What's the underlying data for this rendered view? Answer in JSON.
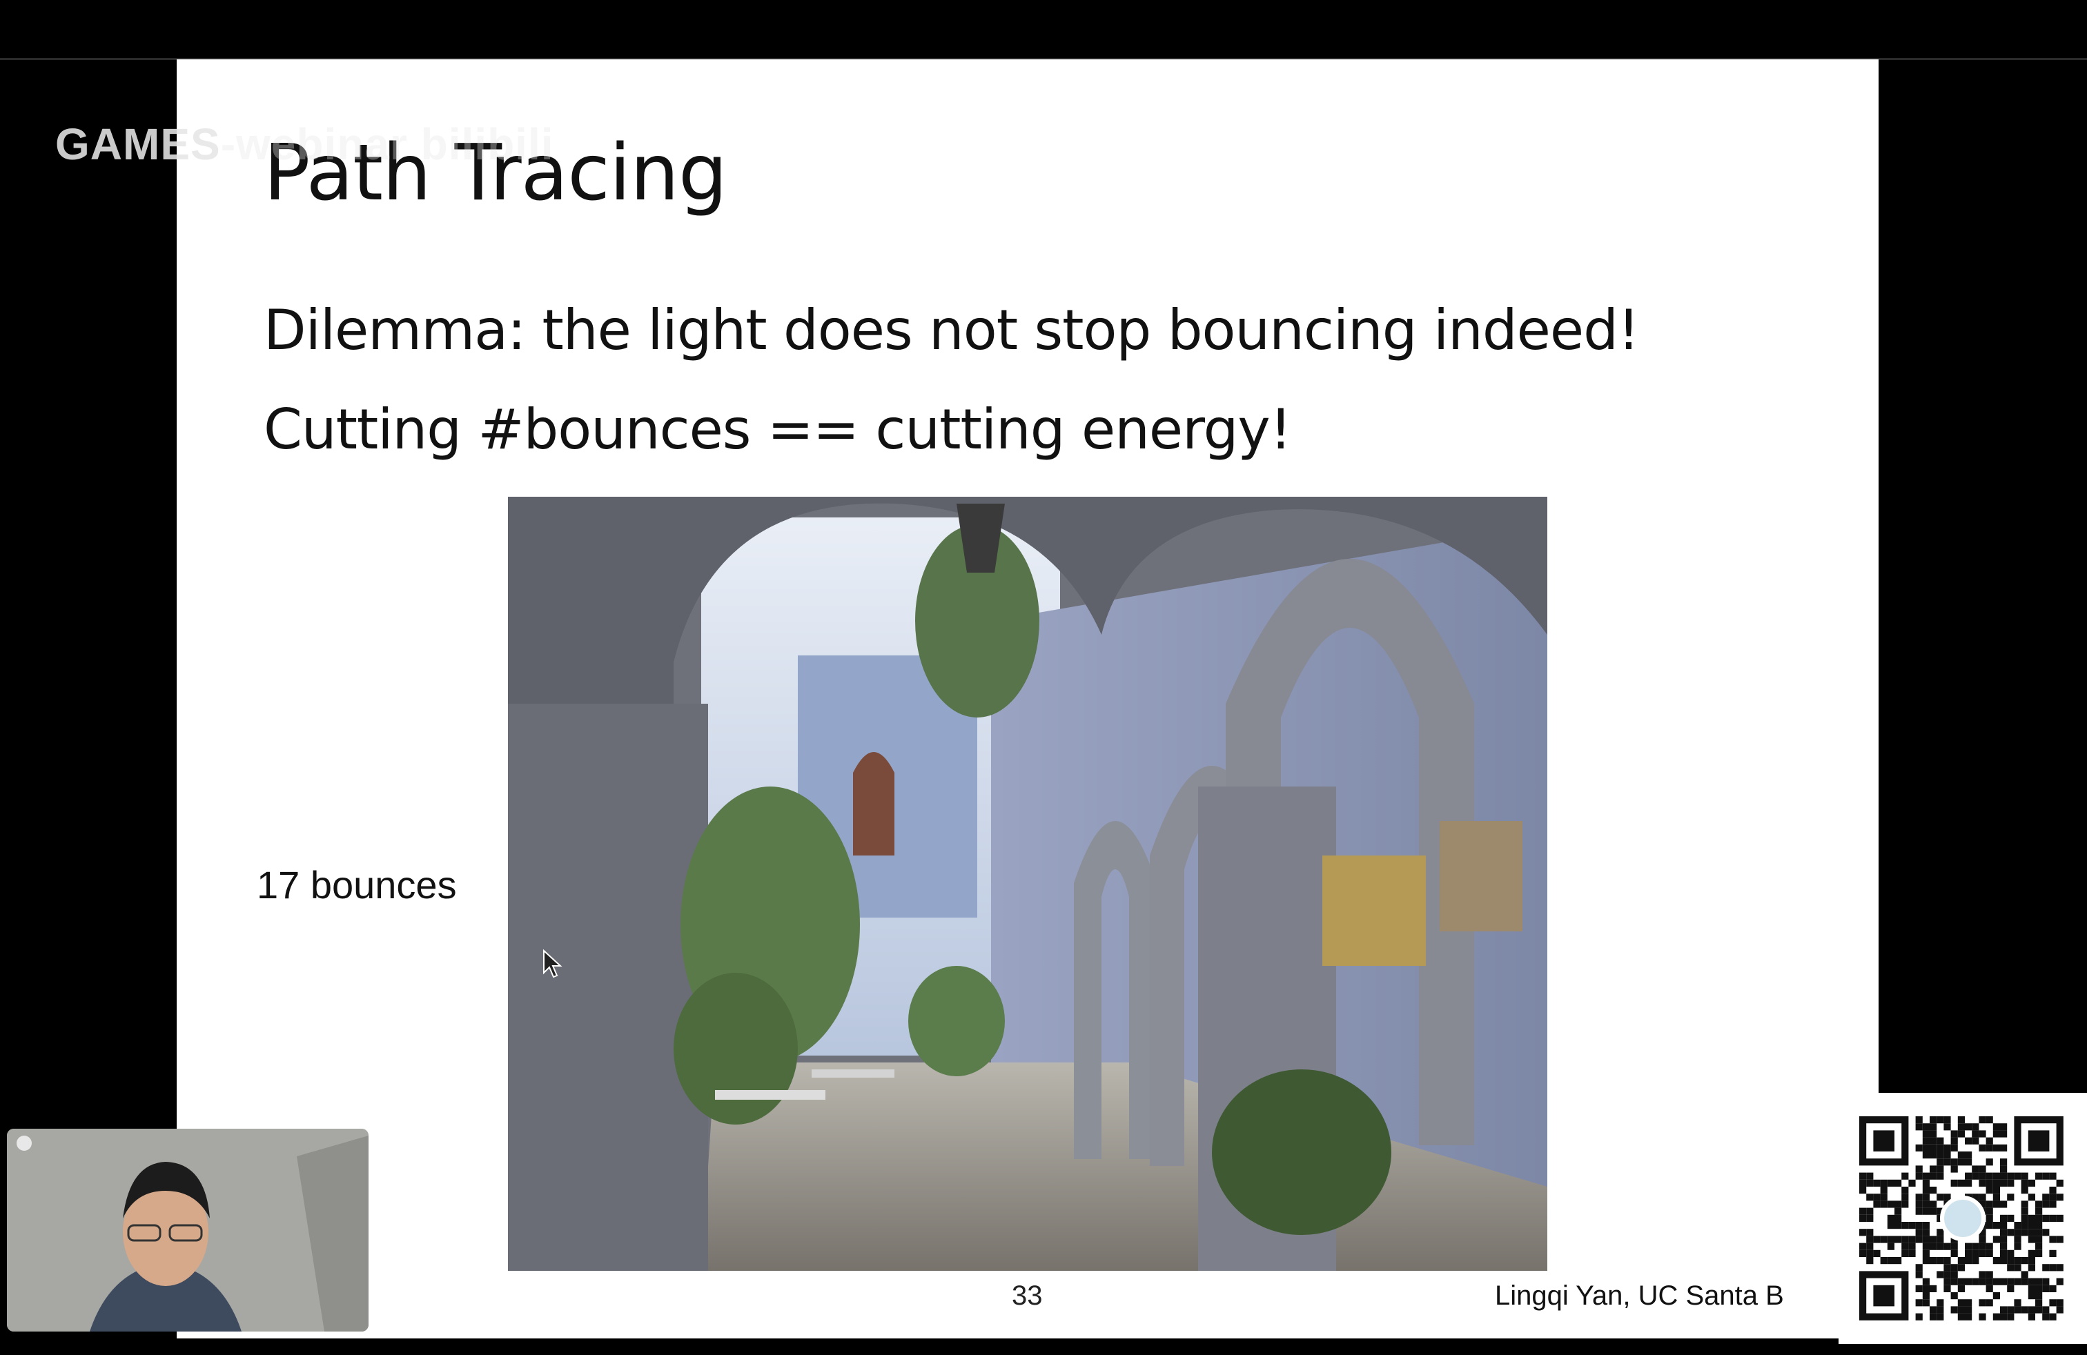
{
  "watermark": {
    "text": "GAMES",
    "faint": "-webinar bilibili"
  },
  "slide": {
    "title": "Path Tracing",
    "bullets": [
      "Dilemma: the light does not stop bouncing indeed!",
      "Cutting #bounces == cutting energy!"
    ],
    "image_label": "17 bounces",
    "page_number": "33",
    "credit": "Lingqi Yan, UC Santa Barbara"
  },
  "icons": {
    "cursor": "mouse-pointer-icon",
    "qr": "qr-code-icon",
    "recording": "record-dot-icon"
  },
  "colors": {
    "background": "#000000",
    "slide": "#ffffff",
    "text": "#111111"
  }
}
